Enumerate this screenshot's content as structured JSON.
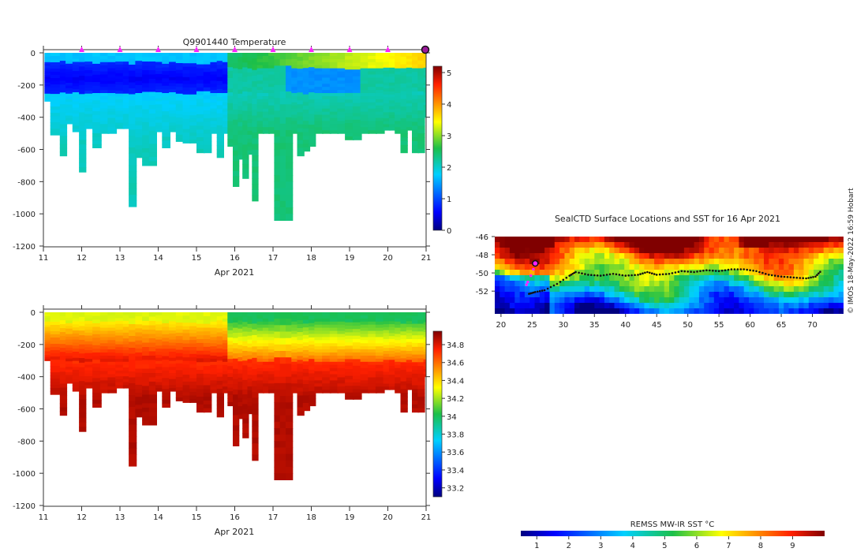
{
  "chart_data": [
    {
      "id": "temperature",
      "type": "heatmap",
      "title": "Q9901440  Temperature",
      "xlabel": "Apr 2021",
      "x_ticks": [
        "11",
        "12",
        "13",
        "14",
        "15",
        "16",
        "17",
        "18",
        "19",
        "20",
        "21"
      ],
      "xlim": [
        11,
        21
      ],
      "ylim": [
        -1200,
        0
      ],
      "y_ticks": [
        0,
        -200,
        -400,
        -600,
        -800,
        -1000,
        -1200
      ],
      "y_tick_labels": [
        "0",
        "-200",
        "-400",
        "-600",
        "-800",
        "-1000",
        "-1200"
      ],
      "colorbar": {
        "min": 0,
        "max": 5.2,
        "ticks": [
          0,
          1,
          2,
          3,
          4,
          5
        ],
        "tick_labels": [
          "0",
          "1",
          "2",
          "3",
          "4",
          "5"
        ]
      },
      "surface_markers_x": [
        12,
        13,
        14,
        15,
        16,
        17,
        18,
        19,
        20
      ],
      "current_position_marker_x": 21,
      "profiles": [
        {
          "x": 11.05,
          "depth": 300
        },
        {
          "x": 11.2,
          "depth": 510
        },
        {
          "x": 11.45,
          "depth": 640
        },
        {
          "x": 11.6,
          "depth": 440
        },
        {
          "x": 11.78,
          "depth": 490
        },
        {
          "x": 11.95,
          "depth": 740
        },
        {
          "x": 12.1,
          "depth": 470
        },
        {
          "x": 12.3,
          "depth": 590
        },
        {
          "x": 12.5,
          "depth": 500
        },
        {
          "x": 12.7,
          "depth": 500
        },
        {
          "x": 12.9,
          "depth": 470
        },
        {
          "x": 13.1,
          "depth": 470
        },
        {
          "x": 13.25,
          "depth": 955
        },
        {
          "x": 13.42,
          "depth": 650
        },
        {
          "x": 13.6,
          "depth": 700
        },
        {
          "x": 13.78,
          "depth": 700
        },
        {
          "x": 13.95,
          "depth": 490
        },
        {
          "x": 14.12,
          "depth": 590
        },
        {
          "x": 14.3,
          "depth": 490
        },
        {
          "x": 14.48,
          "depth": 550
        },
        {
          "x": 14.66,
          "depth": 560
        },
        {
          "x": 14.84,
          "depth": 560
        },
        {
          "x": 15.02,
          "depth": 620
        },
        {
          "x": 15.2,
          "depth": 620
        },
        {
          "x": 15.38,
          "depth": 500
        },
        {
          "x": 15.55,
          "depth": 650
        },
        {
          "x": 15.7,
          "depth": 500
        },
        {
          "x": 15.83,
          "depth": 580
        },
        {
          "x": 15.97,
          "depth": 830
        },
        {
          "x": 16.1,
          "depth": 660
        },
        {
          "x": 16.22,
          "depth": 780
        },
        {
          "x": 16.35,
          "depth": 630
        },
        {
          "x": 16.47,
          "depth": 920
        },
        {
          "x": 16.6,
          "depth": 500
        },
        {
          "x": 16.75,
          "depth": 500
        },
        {
          "x": 16.9,
          "depth": 500
        },
        {
          "x": 17.05,
          "depth": 1040
        },
        {
          "x": 17.2,
          "depth": 1040
        },
        {
          "x": 17.35,
          "depth": 1040
        },
        {
          "x": 17.5,
          "depth": 500
        },
        {
          "x": 17.65,
          "depth": 640
        },
        {
          "x": 17.8,
          "depth": 610
        },
        {
          "x": 17.95,
          "depth": 580
        },
        {
          "x": 18.1,
          "depth": 500
        },
        {
          "x": 18.3,
          "depth": 500
        },
        {
          "x": 18.5,
          "depth": 500
        },
        {
          "x": 18.7,
          "depth": 500
        },
        {
          "x": 18.9,
          "depth": 540
        },
        {
          "x": 19.1,
          "depth": 540
        },
        {
          "x": 19.3,
          "depth": 500
        },
        {
          "x": 19.5,
          "depth": 500
        },
        {
          "x": 19.7,
          "depth": 500
        },
        {
          "x": 19.9,
          "depth": 480
        },
        {
          "x": 20.05,
          "depth": 480
        },
        {
          "x": 20.2,
          "depth": 500
        },
        {
          "x": 20.35,
          "depth": 620
        },
        {
          "x": 20.5,
          "depth": 480
        },
        {
          "x": 20.65,
          "depth": 620
        },
        {
          "x": 20.8,
          "depth": 620
        },
        {
          "x": 20.95,
          "depth": 400
        }
      ]
    },
    {
      "id": "salinity",
      "type": "heatmap",
      "title": "",
      "xlabel": "Apr 2021",
      "x_ticks": [
        "11",
        "12",
        "13",
        "14",
        "15",
        "16",
        "17",
        "18",
        "19",
        "20",
        "21"
      ],
      "xlim": [
        11,
        21
      ],
      "ylim": [
        -1200,
        0
      ],
      "y_ticks": [
        0,
        -200,
        -400,
        -600,
        -800,
        -1000,
        -1200
      ],
      "y_tick_labels": [
        "0",
        "-200",
        "-400",
        "-600",
        "-800",
        "-1000",
        "-1200"
      ],
      "colorbar": {
        "min": 33.1,
        "max": 34.95,
        "ticks": [
          33.2,
          33.4,
          33.6,
          33.8,
          34,
          34.2,
          34.4,
          34.6,
          34.8
        ],
        "tick_labels": [
          "33.2",
          "33.4",
          "33.6",
          "33.8",
          "34",
          "34.2",
          "34.4",
          "34.6",
          "34.8"
        ]
      }
    },
    {
      "id": "sst_map",
      "type": "heatmap",
      "title": "SealCTD Surface Locations and SST for 16 Apr 2021",
      "xlabel": "",
      "ylabel": "",
      "xlim": [
        19,
        75
      ],
      "ylim": [
        -54.5,
        -46
      ],
      "x_ticks": [
        "20",
        "25",
        "30",
        "35",
        "40",
        "45",
        "50",
        "55",
        "60",
        "65",
        "70"
      ],
      "y_ticks": [
        "-46",
        "-48",
        "-50",
        "-52"
      ],
      "track": [
        [
          24.5,
          -52.3
        ],
        [
          25.5,
          -52.1
        ],
        [
          27,
          -51.9
        ],
        [
          29,
          -51.2
        ],
        [
          31,
          -50.3
        ],
        [
          32,
          -49.9
        ],
        [
          34,
          -50.2
        ],
        [
          36,
          -50.3
        ],
        [
          38,
          -50.1
        ],
        [
          40,
          -50.3
        ],
        [
          42,
          -50.2
        ],
        [
          43.5,
          -49.9
        ],
        [
          45,
          -50.2
        ],
        [
          47,
          -50.1
        ],
        [
          49,
          -49.8
        ],
        [
          51,
          -49.9
        ],
        [
          53,
          -49.7
        ],
        [
          55,
          -49.8
        ],
        [
          57,
          -49.6
        ],
        [
          59,
          -49.6
        ],
        [
          61,
          -49.8
        ],
        [
          63,
          -50.2
        ],
        [
          65,
          -50.4
        ],
        [
          67,
          -50.5
        ],
        [
          69,
          -50.6
        ],
        [
          70.5,
          -50.4
        ],
        [
          71.5,
          -49.7
        ]
      ],
      "recent_track": [
        [
          24.1,
          -51.3
        ],
        [
          24.3,
          -51.0
        ],
        [
          24.8,
          -50.3
        ],
        [
          25.2,
          -49.6
        ]
      ],
      "current_position": [
        25.5,
        -48.95
      ],
      "colorbar": {
        "label": "REMSS MW-IR SST °C",
        "min": 0.5,
        "max": 10,
        "ticks": [
          "1",
          "2",
          "3",
          "4",
          "5",
          "6",
          "7",
          "8",
          "9"
        ]
      }
    }
  ],
  "credit": "© IMOS 18-May-2022 16:59 Hobart",
  "colors": {
    "surface_marker": "#ff22ff",
    "position_marker": "#9b1b9b",
    "track": "#111111"
  }
}
